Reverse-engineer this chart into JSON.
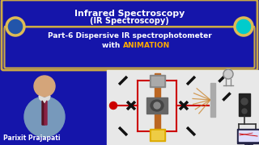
{
  "bg_color": "#1515aa",
  "title_line1": "Infrared Spectroscopy",
  "title_line2": "(IR Spectroscopy)",
  "subtitle_line1": "Part-6 Dispersive IR spectrophotometer",
  "subtitle_line2_a": "with ",
  "subtitle_line2_b": "ANIMATION",
  "animation_color": "#ffaa00",
  "title_color": "#ffffff",
  "subtitle_color": "#ffffff",
  "border_color": "#ccaa44",
  "circle_left_color": "#2255aa",
  "circle_right_color": "#00cccc",
  "circle_border_color": "#ddbb55",
  "author_text": "Parixit Prajapati",
  "author_color": "#ffffff",
  "diagram_bg": "#e8e8e8",
  "line_color": "#cc0000",
  "elem_color": "#111111",
  "source_color": "#cc0000",
  "wood_color": "#bb6622",
  "gray_color": "#888888",
  "yellow_color": "#ddaa00",
  "monitor_color": "#222244",
  "speaker_color": "#222222"
}
